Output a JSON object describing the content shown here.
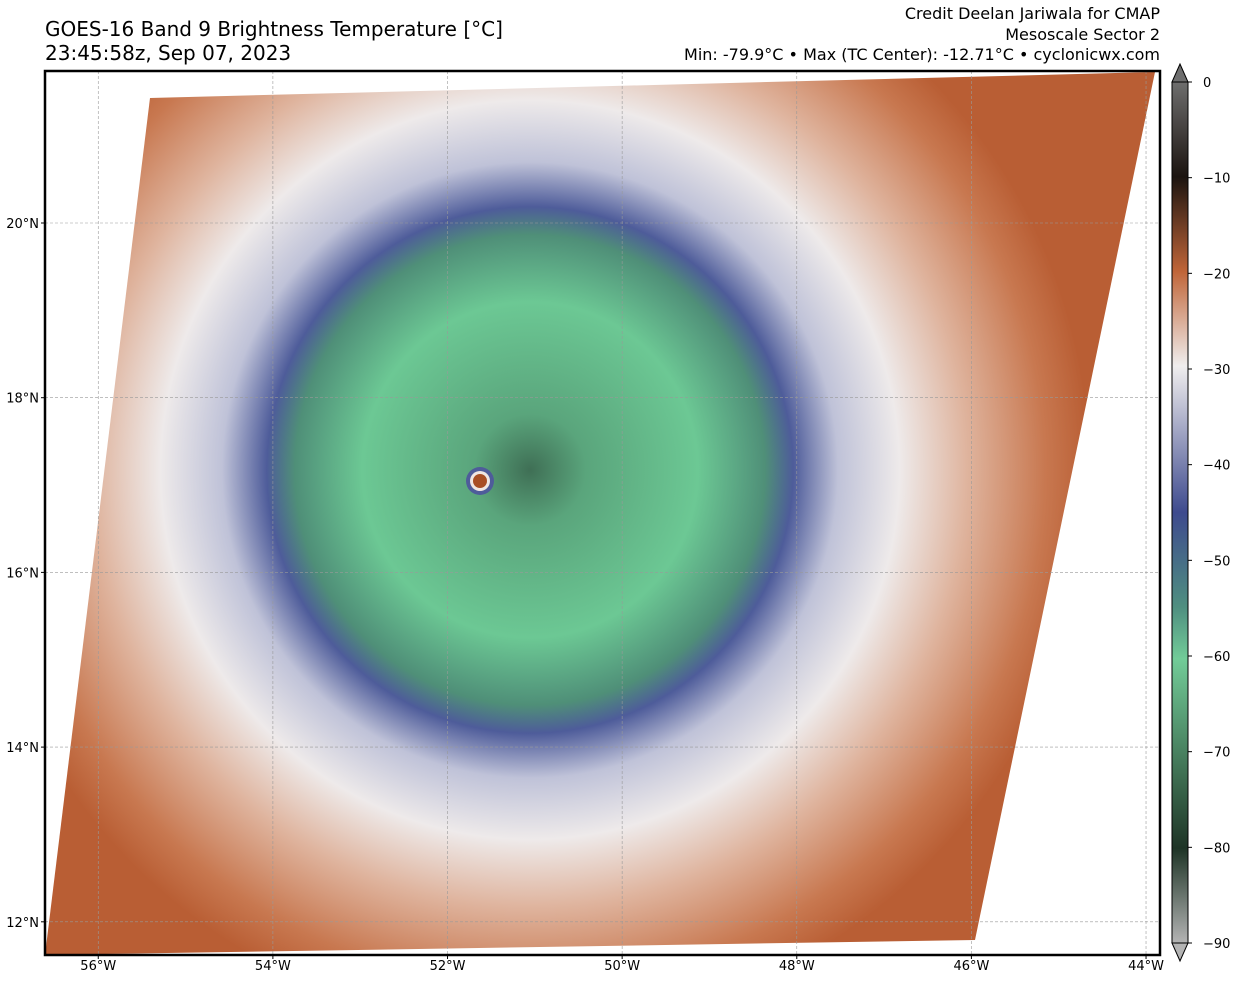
{
  "header": {
    "title": "GOES-16 Band 9 Brightness Temperature [°C]",
    "time": "23:45:58z, Sep 07, 2023",
    "credit": "Credit Deelan Jariwala for CMAP",
    "sector": "Mesoscale Sector 2",
    "stats": "Min: -79.9°C • Max (TC Center): -12.71°C • cyclonicwx.com"
  },
  "map": {
    "xlim": [
      -56.61,
      -43.84
    ],
    "ylim": [
      11.62,
      21.74
    ],
    "xticks": [
      {
        "value": -56,
        "label": "56°W"
      },
      {
        "value": -54,
        "label": "54°W"
      },
      {
        "value": -52,
        "label": "52°W"
      },
      {
        "value": -50,
        "label": "50°W"
      },
      {
        "value": -48,
        "label": "48°W"
      },
      {
        "value": -46,
        "label": "46°W"
      },
      {
        "value": -44,
        "label": "44°W"
      }
    ],
    "yticks": [
      {
        "value": 12,
        "label": "12°N"
      },
      {
        "value": 14,
        "label": "14°N"
      },
      {
        "value": 16,
        "label": "16°N"
      },
      {
        "value": 18,
        "label": "18°N"
      },
      {
        "value": 20,
        "label": "20°N"
      }
    ]
  },
  "colorbar": {
    "lim": [
      -90,
      0
    ],
    "ticks": [
      0,
      {
        "value": -10,
        "label": "−10"
      },
      {
        "value": -20,
        "label": "−20"
      },
      {
        "value": -30,
        "label": "−30"
      },
      {
        "value": -40,
        "label": "−40"
      },
      {
        "value": -50,
        "label": "−50"
      },
      {
        "value": -60,
        "label": "−60"
      },
      {
        "value": -70,
        "label": "−70"
      },
      {
        "value": -80,
        "label": "−80"
      },
      {
        "value": -90,
        "label": "−90"
      }
    ]
  }
}
